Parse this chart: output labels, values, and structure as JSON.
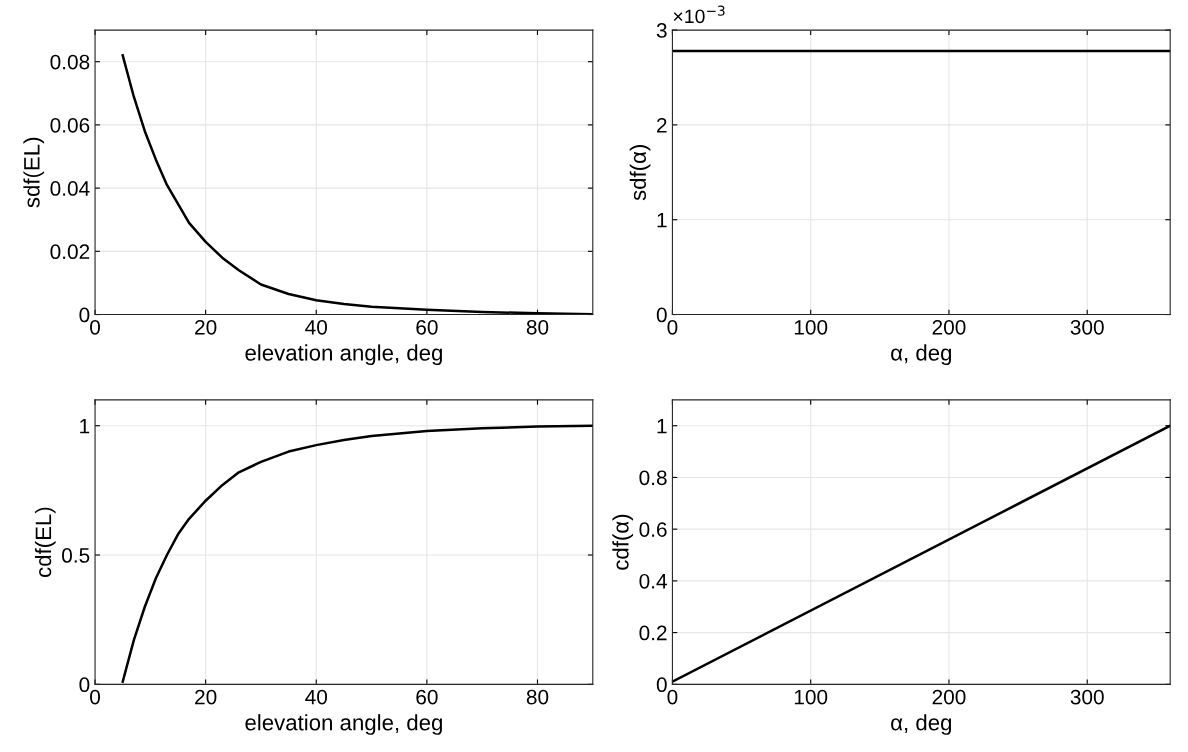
{
  "chart_data": [
    {
      "type": "line",
      "xlabel": "elevation angle, deg",
      "ylabel": "sdf(EL)",
      "xlim": [
        0,
        90
      ],
      "ylim": [
        0,
        0.09
      ],
      "xticks": [
        0,
        20,
        40,
        60,
        80
      ],
      "yticks": [
        0,
        0.02,
        0.04,
        0.06,
        0.08
      ],
      "grid": true,
      "series": [
        {
          "color": "#000000",
          "x": [
            5,
            7,
            9,
            11,
            13,
            15,
            17,
            20,
            23,
            26,
            30,
            35,
            40,
            45,
            50,
            60,
            70,
            80,
            90
          ],
          "values": [
            0.082,
            0.069,
            0.058,
            0.049,
            0.041,
            0.035,
            0.029,
            0.023,
            0.018,
            0.014,
            0.0095,
            0.0065,
            0.0045,
            0.0033,
            0.0025,
            0.0015,
            0.0008,
            0.0004,
            0.0001
          ]
        }
      ]
    },
    {
      "type": "line",
      "xlabel": "α, deg",
      "ylabel": "sdf(α)",
      "xlim": [
        0,
        360
      ],
      "ylim": [
        0,
        3
      ],
      "xticks": [
        0,
        100,
        200,
        300
      ],
      "yticks": [
        0,
        1,
        2,
        3
      ],
      "grid": true,
      "annotations": [
        "×10$^{−3}$"
      ],
      "series": [
        {
          "color": "#000000",
          "x": [
            0,
            360
          ],
          "values": [
            2.78,
            2.78
          ]
        }
      ]
    },
    {
      "type": "line",
      "xlabel": "elevation angle, deg",
      "ylabel": "cdf(EL)",
      "xlim": [
        0,
        90
      ],
      "ylim": [
        0,
        1.1
      ],
      "xticks": [
        0,
        20,
        40,
        60,
        80
      ],
      "yticks": [
        0,
        0.5,
        1
      ],
      "grid": true,
      "series": [
        {
          "color": "#000000",
          "x": [
            5,
            7,
            9,
            11,
            13,
            15,
            17,
            20,
            23,
            26,
            30,
            35,
            40,
            45,
            50,
            60,
            70,
            80,
            90
          ],
          "values": [
            0.01,
            0.17,
            0.3,
            0.41,
            0.5,
            0.58,
            0.64,
            0.71,
            0.77,
            0.82,
            0.86,
            0.9,
            0.925,
            0.945,
            0.96,
            0.98,
            0.99,
            0.997,
            1.0
          ]
        }
      ]
    },
    {
      "type": "line",
      "xlabel": "α, deg",
      "ylabel": "cdf(α)",
      "xlim": [
        0,
        360
      ],
      "ylim": [
        0,
        1.1
      ],
      "xticks": [
        0,
        100,
        200,
        300
      ],
      "yticks": [
        0,
        0.2,
        0.4,
        0.6,
        0.8,
        1
      ],
      "grid": true,
      "series": [
        {
          "color": "#000000",
          "x": [
            0,
            360
          ],
          "values": [
            0.01,
            1.0
          ]
        }
      ]
    }
  ]
}
